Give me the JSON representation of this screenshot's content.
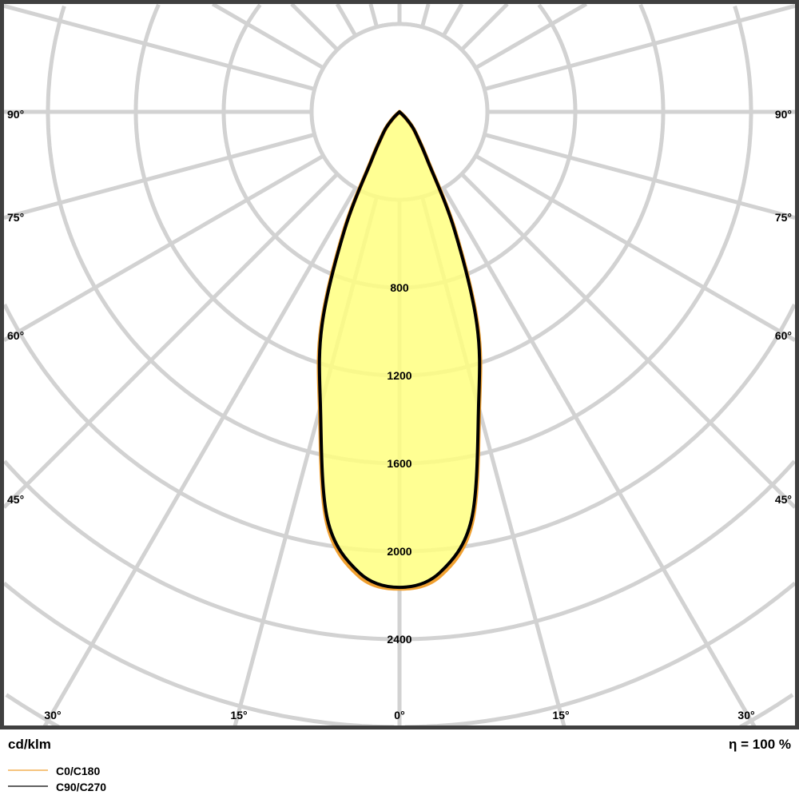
{
  "chart_data": {
    "type": "polar",
    "unit_label": "cd/klm",
    "efficiency_label": "η = 100 %",
    "radial_ticks": [
      400,
      800,
      1200,
      1600,
      2000,
      2400,
      2800,
      3200
    ],
    "radial_tick_labels": [
      "800",
      "1200",
      "1600",
      "2000",
      "2400"
    ],
    "angle_tick_labels": {
      "left": [
        "90°",
        "75°",
        "60°",
        "45°"
      ],
      "right": [
        "90°",
        "75°",
        "60°",
        "45°"
      ],
      "bottom": [
        "30°",
        "15°",
        "0°",
        "15°",
        "30°"
      ]
    },
    "angle_grid_step_deg": 15,
    "grid": true,
    "fill_color": "#ffff80",
    "series": [
      {
        "name": "C0/C180",
        "color": "#f0a030",
        "angles_deg": [
          0,
          5,
          10,
          15,
          20,
          25,
          30,
          35,
          40,
          45,
          50
        ],
        "values": [
          2170,
          2120,
          1900,
          1400,
          1040,
          600,
          260,
          150,
          95,
          40,
          0
        ]
      },
      {
        "name": "C90/C270",
        "color": "#000000",
        "angles_deg": [
          0,
          5,
          10,
          15,
          20,
          25,
          30,
          35,
          40,
          45,
          50
        ],
        "values": [
          2164,
          2105,
          1885,
          1390,
          1030,
          590,
          255,
          148,
          95,
          40,
          0
        ]
      }
    ]
  }
}
